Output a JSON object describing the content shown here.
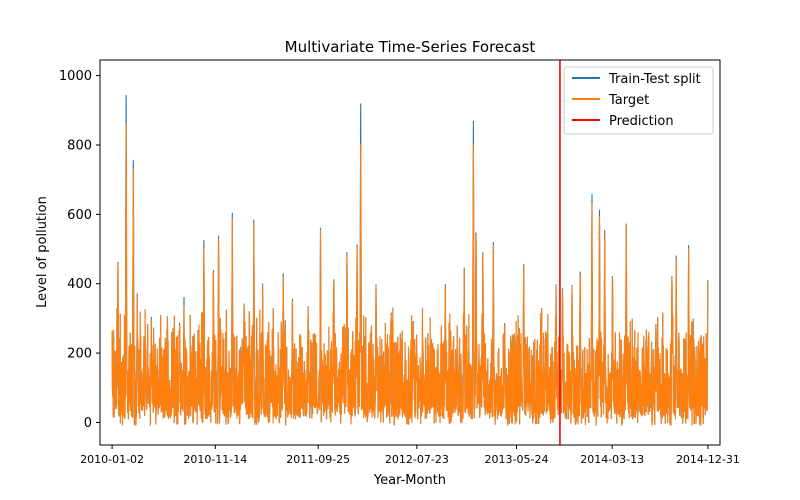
{
  "chart_data": {
    "type": "line",
    "title": "Multivariate Time-Series Forecast",
    "xlabel": "Year-Month",
    "ylabel": "Level of pollution",
    "xlim": [
      "2009-11-26",
      "2015-02-06"
    ],
    "ylim": [
      -65,
      1045
    ],
    "yticks": [
      0,
      200,
      400,
      600,
      800,
      1000
    ],
    "xticks": [
      "2010-01-02",
      "2010-11-14",
      "2011-09-25",
      "2012-07-23",
      "2013-05-24",
      "2014-03-13",
      "2014-12-31"
    ],
    "grid": false,
    "legend": {
      "position": "top-right",
      "entries": [
        {
          "label": "Train-Test split",
          "color": "#1f77b4"
        },
        {
          "label": "Target",
          "color": "#ff7f0e"
        },
        {
          "label": "Prediction",
          "color": "#ff0000"
        }
      ]
    },
    "vline": {
      "x": "2013-10-04",
      "color": "#ff0000"
    },
    "series": [
      {
        "name": "Train-Test split",
        "color": "#1f77b4",
        "x_start": "2010-01-02",
        "x_end": "2014-12-31",
        "peaks": [
          [
            "2010-01-02",
            185
          ],
          [
            "2010-01-20",
            490
          ],
          [
            "2010-02-14",
            980
          ],
          [
            "2010-03-08",
            785
          ],
          [
            "2010-03-20",
            370
          ],
          [
            "2010-05-02",
            315
          ],
          [
            "2010-07-28",
            310
          ],
          [
            "2010-08-10",
            360
          ],
          [
            "2010-09-22",
            275
          ],
          [
            "2010-10-10",
            535
          ],
          [
            "2010-11-08",
            475
          ],
          [
            "2010-11-24",
            570
          ],
          [
            "2011-01-05",
            615
          ],
          [
            "2011-02-10",
            378
          ],
          [
            "2011-03-12",
            595
          ],
          [
            "2011-04-08",
            415
          ],
          [
            "2011-06-10",
            455
          ],
          [
            "2011-07-08",
            385
          ],
          [
            "2011-08-25",
            340
          ],
          [
            "2011-10-02",
            560
          ],
          [
            "2011-11-12",
            455
          ],
          [
            "2011-12-22",
            520
          ],
          [
            "2012-01-22",
            555
          ],
          [
            "2012-02-02",
            995
          ],
          [
            "2012-03-20",
            405
          ],
          [
            "2012-05-05",
            335
          ],
          [
            "2012-07-12",
            315
          ],
          [
            "2012-10-18",
            440
          ],
          [
            "2012-12-15",
            445
          ],
          [
            "2013-01-12",
            885
          ],
          [
            "2013-01-20",
            605
          ],
          [
            "2013-02-10",
            530
          ],
          [
            "2013-03-14",
            540
          ],
          [
            "2013-04-18",
            315
          ],
          [
            "2013-06-15",
            465
          ],
          [
            "2013-08-20",
            245
          ],
          [
            "2013-09-22",
            405
          ],
          [
            "2013-10-12",
            410
          ],
          [
            "2013-11-10",
            395
          ],
          [
            "2013-12-05",
            480
          ],
          [
            "2014-01-10",
            670
          ],
          [
            "2014-02-02",
            650
          ],
          [
            "2014-02-18",
            575
          ],
          [
            "2014-03-14",
            465
          ],
          [
            "2014-04-25",
            595
          ],
          [
            "2014-07-25",
            300
          ],
          [
            "2014-09-12",
            455
          ],
          [
            "2014-09-25",
            480
          ],
          [
            "2014-11-02",
            520
          ],
          [
            "2014-12-31",
            445
          ]
        ]
      },
      {
        "name": "Target",
        "color": "#ff7f0e",
        "x_start": "2010-01-02",
        "x_end": "2014-12-31",
        "peaks": [
          [
            "2010-01-02",
            180
          ],
          [
            "2010-01-20",
            485
          ],
          [
            "2010-02-14",
            895
          ],
          [
            "2010-03-08",
            760
          ],
          [
            "2010-03-20",
            365
          ],
          [
            "2010-05-02",
            310
          ],
          [
            "2010-07-28",
            305
          ],
          [
            "2010-08-10",
            335
          ],
          [
            "2010-09-22",
            270
          ],
          [
            "2010-10-10",
            510
          ],
          [
            "2010-11-08",
            470
          ],
          [
            "2010-11-24",
            560
          ],
          [
            "2011-01-05",
            600
          ],
          [
            "2011-02-10",
            375
          ],
          [
            "2011-03-12",
            585
          ],
          [
            "2011-04-08",
            410
          ],
          [
            "2011-06-10",
            445
          ],
          [
            "2011-07-08",
            380
          ],
          [
            "2011-08-25",
            335
          ],
          [
            "2011-10-02",
            555
          ],
          [
            "2011-11-12",
            450
          ],
          [
            "2011-12-22",
            515
          ],
          [
            "2012-01-22",
            545
          ],
          [
            "2012-02-02",
            870
          ],
          [
            "2012-03-20",
            400
          ],
          [
            "2012-05-05",
            330
          ],
          [
            "2012-07-12",
            310
          ],
          [
            "2012-10-18",
            435
          ],
          [
            "2012-12-15",
            440
          ],
          [
            "2013-01-12",
            815
          ],
          [
            "2013-01-20",
            595
          ],
          [
            "2013-02-10",
            525
          ],
          [
            "2013-03-14",
            530
          ],
          [
            "2013-04-18",
            310
          ],
          [
            "2013-06-15",
            460
          ],
          [
            "2013-08-20",
            240
          ],
          [
            "2013-09-22",
            400
          ],
          [
            "2013-10-12",
            405
          ],
          [
            "2013-11-10",
            390
          ],
          [
            "2013-12-05",
            470
          ],
          [
            "2014-01-10",
            640
          ],
          [
            "2014-02-02",
            630
          ],
          [
            "2014-02-18",
            565
          ],
          [
            "2014-03-14",
            460
          ],
          [
            "2014-04-25",
            590
          ],
          [
            "2014-07-25",
            295
          ],
          [
            "2014-09-12",
            450
          ],
          [
            "2014-09-25",
            470
          ],
          [
            "2014-11-02",
            510
          ],
          [
            "2014-12-31",
            440
          ]
        ]
      }
    ]
  }
}
